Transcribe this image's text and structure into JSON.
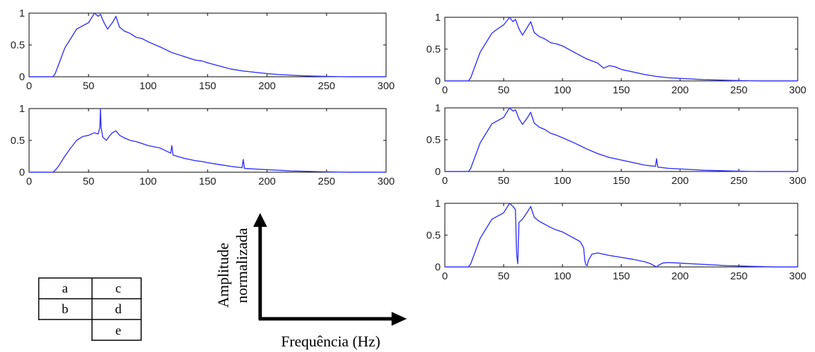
{
  "figure": {
    "y_axis_caption_line1": "Amplitude",
    "y_axis_caption_line2": "normalizada",
    "x_axis_caption": "Frequência (Hz)"
  },
  "panel_key": [
    [
      "a",
      "c"
    ],
    [
      "b",
      "d"
    ],
    [
      "",
      "e"
    ]
  ],
  "colors": {
    "line": "#3333ff",
    "axes": "#000000",
    "text": "#222222"
  },
  "chart_data": [
    {
      "type": "line",
      "panel": "a",
      "title": "",
      "xlabel": "",
      "ylabel": "",
      "xlim": [
        0,
        300
      ],
      "ylim": [
        0,
        1
      ],
      "xticks": [
        0,
        50,
        100,
        150,
        200,
        250,
        300
      ],
      "yticks": [
        0,
        0.5,
        1
      ],
      "grid": false,
      "series": [
        {
          "x": [
            0,
            20,
            22,
            25,
            30,
            35,
            40,
            45,
            50,
            55,
            58,
            60,
            63,
            66,
            70,
            73,
            76,
            80,
            85,
            90,
            95,
            100,
            110,
            120,
            130,
            140,
            145,
            150,
            160,
            170,
            180,
            190,
            200,
            210,
            220,
            230,
            240,
            250,
            260,
            270,
            280,
            300
          ],
          "y": [
            0,
            0,
            0.05,
            0.2,
            0.45,
            0.6,
            0.75,
            0.8,
            0.85,
            1.0,
            0.95,
            0.98,
            0.85,
            0.75,
            0.85,
            0.95,
            0.78,
            0.72,
            0.68,
            0.62,
            0.6,
            0.55,
            0.47,
            0.38,
            0.32,
            0.26,
            0.25,
            0.22,
            0.17,
            0.12,
            0.09,
            0.07,
            0.05,
            0.035,
            0.025,
            0.015,
            0.01,
            0.005,
            0.002,
            0,
            0,
            0
          ]
        }
      ]
    },
    {
      "type": "line",
      "panel": "b",
      "title": "",
      "xlabel": "",
      "ylabel": "",
      "xlim": [
        0,
        300
      ],
      "ylim": [
        0,
        1
      ],
      "xticks": [
        0,
        50,
        100,
        150,
        200,
        250,
        300
      ],
      "yticks": [
        0,
        0.5,
        1
      ],
      "grid": false,
      "series": [
        {
          "x": [
            0,
            20,
            22,
            25,
            30,
            35,
            40,
            45,
            50,
            55,
            58,
            59.5,
            60,
            60.5,
            62,
            65,
            68,
            70,
            73,
            76,
            80,
            85,
            90,
            95,
            100,
            110,
            119,
            120,
            121,
            130,
            140,
            145,
            150,
            160,
            170,
            179,
            180,
            181,
            190,
            200,
            210,
            220,
            230,
            240,
            250,
            260,
            270,
            280,
            300
          ],
          "y": [
            0,
            0,
            0.03,
            0.1,
            0.25,
            0.38,
            0.5,
            0.56,
            0.58,
            0.62,
            0.6,
            0.7,
            1.0,
            0.7,
            0.55,
            0.5,
            0.58,
            0.62,
            0.65,
            0.58,
            0.54,
            0.5,
            0.48,
            0.45,
            0.42,
            0.38,
            0.3,
            0.42,
            0.27,
            0.22,
            0.18,
            0.17,
            0.15,
            0.12,
            0.09,
            0.07,
            0.2,
            0.06,
            0.05,
            0.04,
            0.03,
            0.02,
            0.015,
            0.01,
            0.005,
            0.002,
            0,
            0,
            0
          ]
        }
      ]
    },
    {
      "type": "line",
      "panel": "c",
      "title": "",
      "xlabel": "",
      "ylabel": "",
      "xlim": [
        0,
        300
      ],
      "ylim": [
        0,
        1
      ],
      "xticks": [
        0,
        50,
        100,
        150,
        200,
        250,
        300
      ],
      "yticks": [
        0,
        0.5,
        1
      ],
      "grid": false,
      "series": [
        {
          "x": [
            0,
            20,
            22,
            25,
            30,
            35,
            40,
            45,
            50,
            55,
            58,
            60,
            63,
            66,
            70,
            73,
            76,
            80,
            85,
            90,
            95,
            100,
            110,
            120,
            130,
            135,
            140,
            145,
            150,
            160,
            170,
            180,
            190,
            200,
            210,
            220,
            230,
            240,
            250,
            260,
            270,
            280,
            300
          ],
          "y": [
            0,
            0,
            0.05,
            0.2,
            0.45,
            0.6,
            0.75,
            0.82,
            0.88,
            1.0,
            0.93,
            0.97,
            0.82,
            0.72,
            0.84,
            0.93,
            0.76,
            0.7,
            0.66,
            0.6,
            0.58,
            0.55,
            0.45,
            0.35,
            0.28,
            0.2,
            0.24,
            0.22,
            0.18,
            0.14,
            0.1,
            0.07,
            0.05,
            0.04,
            0.03,
            0.02,
            0.015,
            0.01,
            0.005,
            0.002,
            0,
            0,
            0
          ]
        }
      ]
    },
    {
      "type": "line",
      "panel": "d",
      "title": "",
      "xlabel": "",
      "ylabel": "",
      "xlim": [
        0,
        300
      ],
      "ylim": [
        0,
        1
      ],
      "xticks": [
        0,
        50,
        100,
        150,
        200,
        250,
        300
      ],
      "yticks": [
        0,
        0.5,
        1
      ],
      "grid": false,
      "series": [
        {
          "x": [
            0,
            20,
            22,
            25,
            30,
            35,
            40,
            45,
            50,
            55,
            58,
            60,
            63,
            66,
            70,
            73,
            76,
            80,
            85,
            90,
            95,
            100,
            110,
            120,
            130,
            140,
            145,
            150,
            160,
            170,
            179,
            180,
            181,
            190,
            200,
            210,
            220,
            230,
            240,
            250,
            260,
            270,
            280,
            300
          ],
          "y": [
            0,
            0,
            0.05,
            0.2,
            0.45,
            0.6,
            0.75,
            0.8,
            0.85,
            1.0,
            0.95,
            0.97,
            0.83,
            0.74,
            0.84,
            0.93,
            0.76,
            0.7,
            0.66,
            0.6,
            0.57,
            0.53,
            0.45,
            0.36,
            0.28,
            0.22,
            0.2,
            0.18,
            0.14,
            0.1,
            0.08,
            0.2,
            0.07,
            0.05,
            0.04,
            0.03,
            0.02,
            0.015,
            0.01,
            0.005,
            0.002,
            0,
            0,
            0
          ]
        }
      ]
    },
    {
      "type": "line",
      "panel": "e",
      "title": "",
      "xlabel": "",
      "ylabel": "",
      "xlim": [
        0,
        300
      ],
      "ylim": [
        0,
        1
      ],
      "xticks": [
        0,
        50,
        100,
        150,
        200,
        250,
        300
      ],
      "yticks": [
        0,
        0.5,
        1
      ],
      "grid": false,
      "series": [
        {
          "x": [
            0,
            20,
            22,
            25,
            30,
            35,
            40,
            45,
            50,
            55,
            58,
            60,
            61,
            62,
            63,
            66,
            70,
            73,
            76,
            80,
            85,
            90,
            95,
            100,
            110,
            115,
            118,
            119,
            120,
            121,
            122,
            125,
            130,
            140,
            150,
            160,
            170,
            175,
            178,
            180,
            182,
            185,
            190,
            200,
            210,
            220,
            230,
            240,
            250,
            260,
            270,
            280,
            300
          ],
          "y": [
            0,
            0,
            0.05,
            0.2,
            0.45,
            0.6,
            0.75,
            0.8,
            0.85,
            1.0,
            0.95,
            0.9,
            0.2,
            0.05,
            0.7,
            0.75,
            0.86,
            0.95,
            0.78,
            0.72,
            0.67,
            0.62,
            0.58,
            0.55,
            0.45,
            0.4,
            0.3,
            0.1,
            0.03,
            0.02,
            0.1,
            0.2,
            0.22,
            0.18,
            0.15,
            0.12,
            0.08,
            0.05,
            0.02,
            0.0,
            0.03,
            0.06,
            0.07,
            0.06,
            0.05,
            0.04,
            0.03,
            0.02,
            0.015,
            0.01,
            0.005,
            0,
            0
          ]
        }
      ]
    }
  ]
}
